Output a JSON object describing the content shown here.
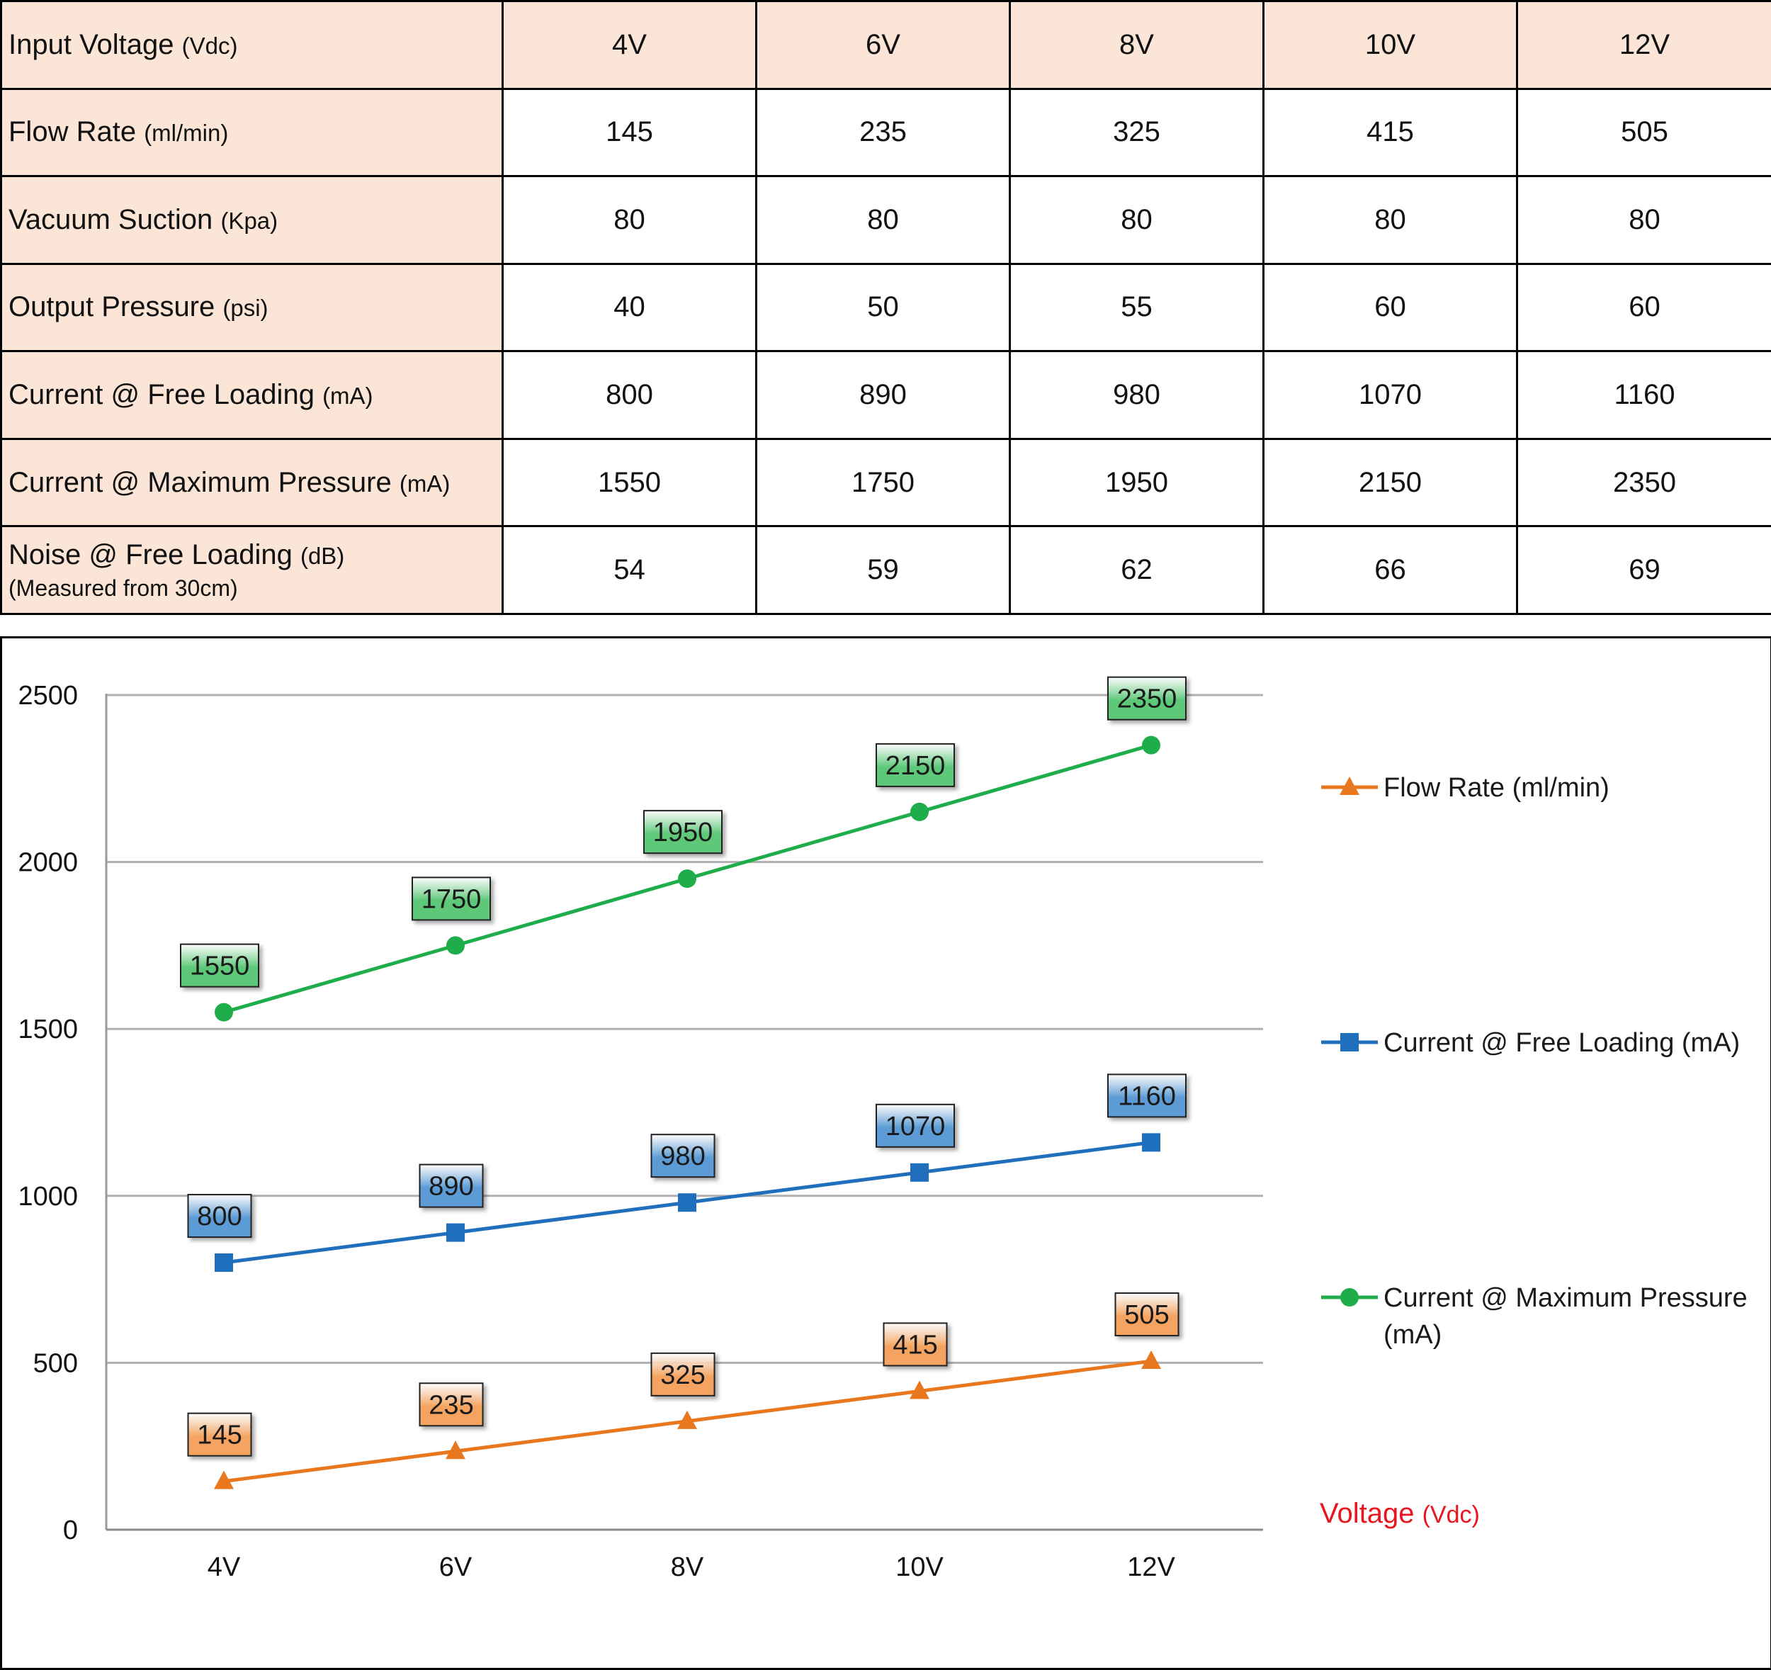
{
  "table": {
    "header": {
      "label": "Input Voltage",
      "unit": "(Vdc)",
      "values": [
        "4V",
        "6V",
        "8V",
        "10V",
        "12V"
      ]
    },
    "rows": [
      {
        "label": "Flow Rate",
        "unit": "(ml/min)",
        "values": [
          "145",
          "235",
          "325",
          "415",
          "505"
        ]
      },
      {
        "label": "Vacuum Suction",
        "unit": "(Kpa)",
        "values": [
          "80",
          "80",
          "80",
          "80",
          "80"
        ]
      },
      {
        "label": "Output Pressure",
        "unit": "(psi)",
        "values": [
          "40",
          "50",
          "55",
          "60",
          "60"
        ]
      },
      {
        "label": "Current @ Free Loading",
        "unit": "(mA)",
        "values": [
          "800",
          "890",
          "980",
          "1070",
          "1160"
        ]
      },
      {
        "label": "Current @ Maximum Pressure",
        "unit": "(mA)",
        "values": [
          "1550",
          "1750",
          "1950",
          "2150",
          "2350"
        ]
      },
      {
        "label": "Noise @ Free Loading",
        "unit": "(dB)",
        "sublabel": "(Measured from 30cm)",
        "values": [
          "54",
          "59",
          "62",
          "66",
          "69"
        ]
      }
    ]
  },
  "chart_data": {
    "type": "line",
    "categories": [
      "4V",
      "6V",
      "8V",
      "10V",
      "12V"
    ],
    "x_title": "Voltage",
    "x_title_unit": "(Vdc)",
    "ylim": [
      0,
      2500
    ],
    "yticks": [
      0,
      500,
      1000,
      1500,
      2000,
      2500
    ],
    "grid": true,
    "legend_position": "right",
    "series": [
      {
        "name": "Flow Rate (ml/min)",
        "values": [
          145,
          235,
          325,
          415,
          505
        ],
        "color": "#e8771d",
        "marker": "triangle",
        "label_fill": "#f4a460"
      },
      {
        "name": "Current @ Free Loading (mA)",
        "values": [
          800,
          890,
          980,
          1070,
          1160
        ],
        "color": "#1f6fbd",
        "marker": "square",
        "label_fill": "#5b9bd5"
      },
      {
        "name": "Current @ Maximum Pressure (mA)",
        "name_lines": [
          "Current @ Maximum Pressure",
          "(mA)"
        ],
        "values": [
          1550,
          1750,
          1950,
          2150,
          2350
        ],
        "color": "#1fac4a",
        "marker": "circle",
        "label_fill": "#5cc878"
      }
    ]
  }
}
